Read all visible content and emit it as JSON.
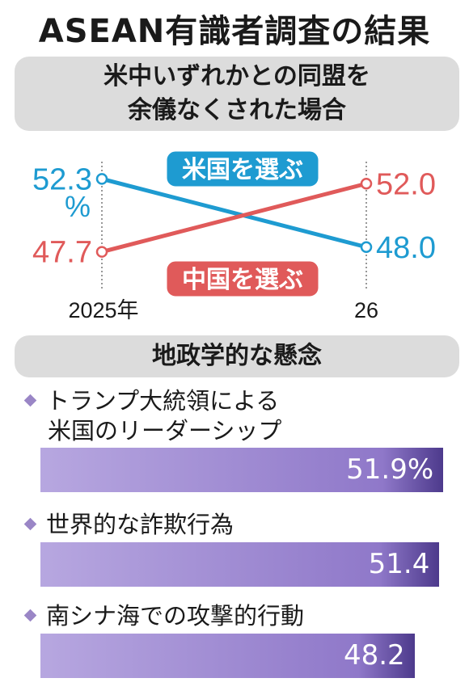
{
  "title": "ASEAN有識者調査の結果",
  "chart_data": [
    {
      "type": "line",
      "subtitle": [
        "米中いずれかとの同盟を",
        "余儀なくされた場合"
      ],
      "x": [
        "2025年",
        "26"
      ],
      "unit": "%",
      "ylim": [
        46,
        54
      ],
      "series": [
        {
          "name": "米国を選ぶ",
          "values": [
            52.3,
            48.0
          ],
          "labels": [
            "52.3",
            "48.0"
          ],
          "color": "#1e9bd1"
        },
        {
          "name": "中国を選ぶ",
          "values": [
            47.7,
            52.0
          ],
          "labels": [
            "47.7",
            "52.0"
          ],
          "color": "#e05a5a"
        }
      ]
    },
    {
      "type": "bar",
      "title": "地政学的な懸念",
      "categories": [
        [
          "トランプ大統領による",
          "米国のリーダーシップ"
        ],
        [
          "世界的な詐欺行為"
        ],
        [
          "南シナ海での攻撃的行動"
        ]
      ],
      "values": [
        51.9,
        51.4,
        48.2
      ],
      "labels": [
        "51.9%",
        "51.4",
        "48.2"
      ],
      "color": "#9a86c6"
    }
  ]
}
